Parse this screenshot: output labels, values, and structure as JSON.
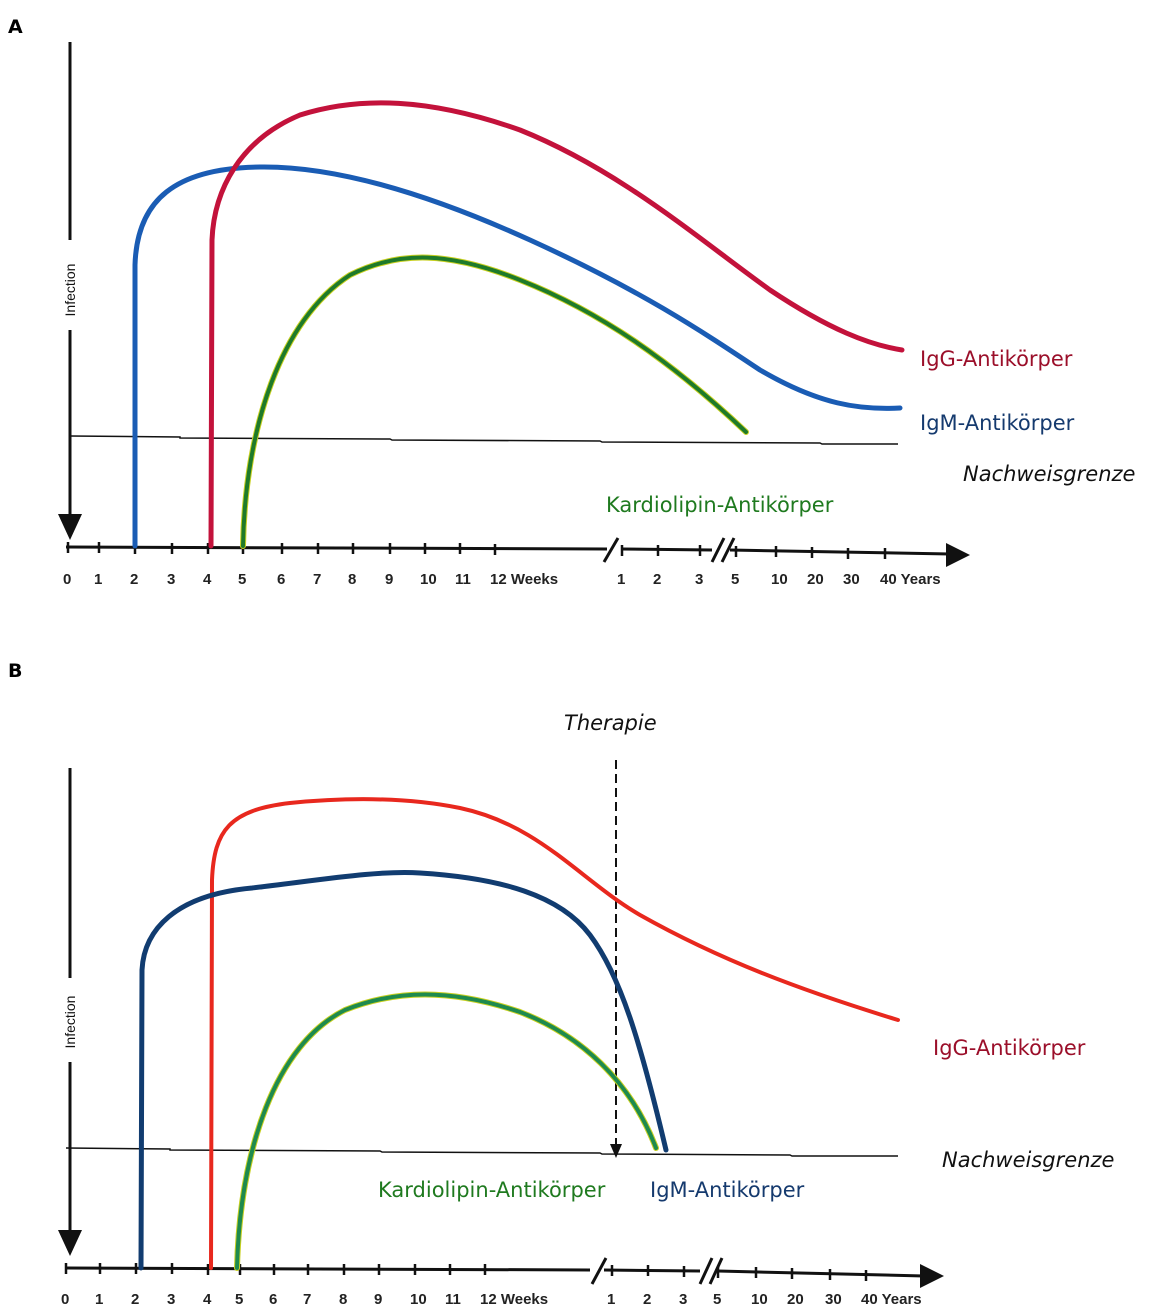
{
  "colors": {
    "igg_a": "#c3123b",
    "igm_a": "#1a5cb4",
    "kardio": "#1e7a2a",
    "kardio_edge": "#c8d020",
    "igg_b": "#e8281e",
    "igm_b": "#113c70",
    "label_igg": "#9b0f2a",
    "label_igm": "#153a6e",
    "label_kardio": "#1f7a1f",
    "axis": "#111111"
  },
  "panel_a": {
    "letter": "A",
    "y_axis_label": "Infection",
    "x_ticks": [
      "0",
      "1",
      "2",
      "3",
      "4",
      "5",
      "6",
      "7",
      "8",
      "9",
      "10",
      "11",
      "12 Weeks",
      "1",
      "2",
      "3",
      "5",
      "10",
      "20",
      "30",
      "40 Years"
    ],
    "labels": {
      "igg": "IgG-Antikörper",
      "igm": "IgM-Antikörper",
      "limit": "Nachweisgrenze",
      "kardio": "Kardiolipin-Antikörper"
    }
  },
  "panel_b": {
    "letter": "B",
    "y_axis_label": "Infection",
    "therapy": "Therapie",
    "x_ticks": [
      "0",
      "1",
      "2",
      "3",
      "4",
      "5",
      "6",
      "7",
      "8",
      "9",
      "10",
      "11",
      "12 Weeks",
      "1",
      "2",
      "3",
      "5",
      "10",
      "20",
      "30",
      "40 Years"
    ],
    "labels": {
      "igg": "IgG-Antikörper",
      "igm": "IgM-Antikörper",
      "limit": "Nachweisgrenze",
      "kardio": "Kardiolipin-Antikörper"
    }
  },
  "chart_data": [
    {
      "type": "line",
      "panel": "A",
      "xlabel": "",
      "ylabel": "Infection",
      "x_categories": [
        "0",
        "1",
        "2",
        "3",
        "4",
        "5",
        "6",
        "7",
        "8",
        "9",
        "10",
        "11",
        "12 Weeks",
        "1",
        "2",
        "3",
        "5",
        "10",
        "20",
        "30",
        "40 Years"
      ],
      "series": [
        {
          "name": "IgG-Antikörper",
          "start": "4 Weeks",
          "peak": "8 Weeks",
          "end": "40 Years",
          "end_state": "above detection limit"
        },
        {
          "name": "IgM-Antikörper",
          "start": "2 Weeks",
          "peak": "5 Weeks",
          "end": "40 Years",
          "end_state": "just above detection limit"
        },
        {
          "name": "Kardiolipin-Antikörper",
          "start": "5 Weeks",
          "peak": "10 Weeks",
          "end": "5 Years",
          "end_state": "reaches detection limit"
        }
      ],
      "reference_line": "Nachweisgrenze"
    },
    {
      "type": "line",
      "panel": "B",
      "xlabel": "",
      "ylabel": "Infection",
      "x_categories": [
        "0",
        "1",
        "2",
        "3",
        "4",
        "5",
        "6",
        "7",
        "8",
        "9",
        "10",
        "11",
        "12 Weeks",
        "1",
        "2",
        "3",
        "5",
        "10",
        "20",
        "30",
        "40 Years"
      ],
      "series": [
        {
          "name": "IgG-Antikörper",
          "start": "4 Weeks",
          "peak": "9 Weeks",
          "end": "40 Years",
          "end_state": "declining, above detection limit"
        },
        {
          "name": "IgM-Antikörper",
          "start": "2 Weeks",
          "peak": "10 Weeks",
          "end": "2.5 Years",
          "end_state": "drops to detection limit after therapy"
        },
        {
          "name": "Kardiolipin-Antikörper",
          "start": "5 Weeks",
          "peak": "10 Weeks",
          "end": "2 Years",
          "end_state": "drops to detection limit after therapy"
        }
      ],
      "reference_line": "Nachweisgrenze",
      "annotation": {
        "text": "Therapie",
        "x": "1 Year",
        "style": "dashed arrow"
      }
    }
  ]
}
